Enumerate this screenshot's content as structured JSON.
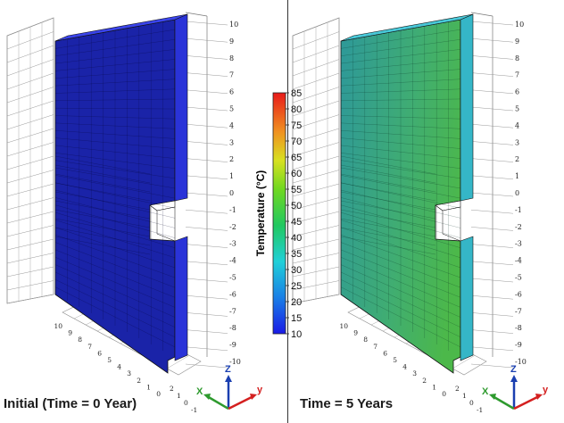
{
  "panels": [
    {
      "caption": "Initial (Time = 0 Year)",
      "front_color": "#1a23a8",
      "side_color": "#2a33d8",
      "top_color": "#3a44ea",
      "y_ticks": [
        "10",
        "9",
        "8",
        "7",
        "6",
        "5",
        "4",
        "3",
        "2",
        "1",
        "0",
        "-1",
        "-2",
        "-3",
        "-4",
        "-5",
        "-6",
        "-7",
        "-8",
        "-9",
        "-10"
      ],
      "x_ticks": [
        "10",
        "9",
        "8",
        "7",
        "6",
        "5",
        "4",
        "3",
        "2",
        "1",
        "0"
      ],
      "z_ticks": [
        "2",
        "1",
        "0",
        "-1"
      ]
    },
    {
      "caption": "Time = 5 Years",
      "front_color": "#2fa38e",
      "side_color": "#35b6c7",
      "top_color": "#48c8d8",
      "y_ticks": [
        "10",
        "9",
        "8",
        "7",
        "6",
        "5",
        "4",
        "3",
        "2",
        "1",
        "0",
        "-1",
        "-2",
        "-3",
        "-4",
        "-5",
        "-6",
        "-7",
        "-8",
        "-9",
        "-10"
      ],
      "x_ticks": [
        "10",
        "9",
        "8",
        "7",
        "6",
        "5",
        "4",
        "3",
        "2",
        "1",
        "0"
      ],
      "z_ticks": [
        "2",
        "1",
        "0",
        "-1"
      ]
    }
  ],
  "colorbar": {
    "title": "Temperature (°C)",
    "ticks": [
      "85",
      "80",
      "75",
      "70",
      "65",
      "60",
      "55",
      "50",
      "45",
      "40",
      "35",
      "30",
      "25",
      "20",
      "15",
      "10"
    ],
    "min": 10,
    "max": 85
  },
  "axes_triad": {
    "x": "X",
    "y": "y",
    "z": "Z"
  },
  "colors": {
    "x_axis": "#2e9a2e",
    "y_axis": "#d42020",
    "z_axis": "#1a3fb0"
  }
}
